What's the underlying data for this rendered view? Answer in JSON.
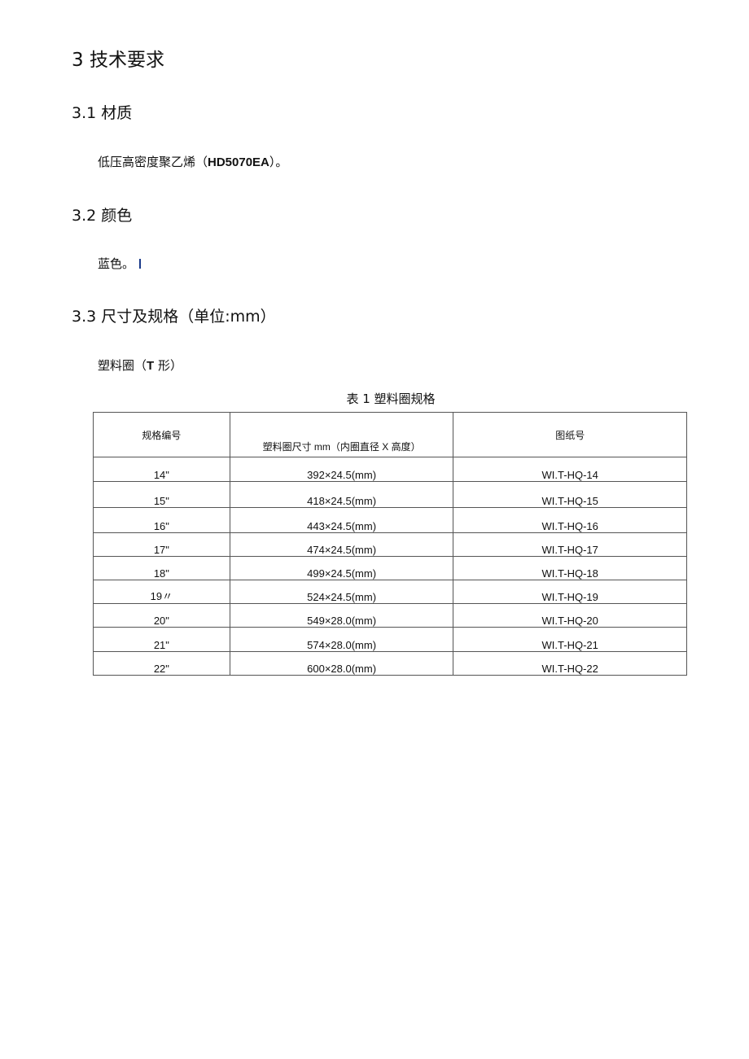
{
  "section": {
    "title": "3 技术要求",
    "material": {
      "heading": "3.1 材质",
      "text_pre": "低压高密度聚乙烯（",
      "text_bold": "HD5070EA",
      "text_post": "）。"
    },
    "color": {
      "heading": "3.2 颜色",
      "text": "蓝色。"
    },
    "size": {
      "heading": "3.3 尺寸及规格（单位:mm）",
      "subheading_pre": "塑料圈（",
      "subheading_bold": "T",
      "subheading_post": " 形）"
    }
  },
  "table": {
    "caption": "表 1 塑料圈规格",
    "headers": [
      "规格编号",
      "塑料圈尺寸 mm（内圈直径 X 高度）",
      "图纸号"
    ],
    "rows": [
      [
        "14\"",
        "392×24.5(mm)",
        "WI.T-HQ-14"
      ],
      [
        "15\"",
        "418×24.5(mm)",
        "WI.T-HQ-15"
      ],
      [
        "16\"",
        "443×24.5(mm)",
        "WI.T-HQ-16"
      ],
      [
        "17\"",
        "474×24.5(mm)",
        "WI.T-HQ-17"
      ],
      [
        "18\"",
        "499×24.5(mm)",
        "WI.T-HQ-18"
      ],
      [
        "19〃",
        "524×24.5(mm)",
        "WI.T-HQ-19"
      ],
      [
        "20\"",
        "549×28.0(mm)",
        "WI.T-HQ-20"
      ],
      [
        "21\"",
        "574×28.0(mm)",
        "WI.T-HQ-21"
      ],
      [
        "22\"",
        "600×28.0(mm)",
        "WI.T-HQ-22"
      ]
    ]
  }
}
